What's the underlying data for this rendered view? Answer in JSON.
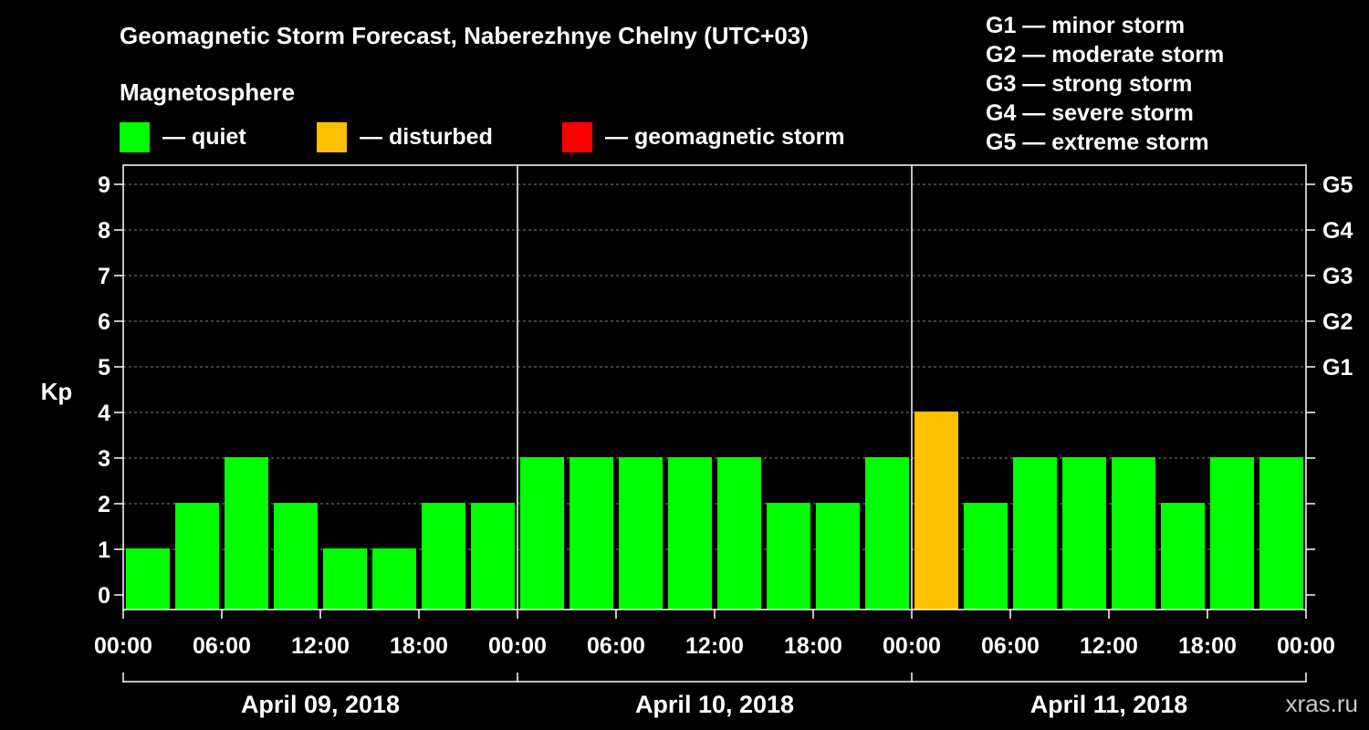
{
  "chart_data": {
    "type": "bar",
    "title": "Geomagnetic Storm Forecast, Naberezhnye Chelny (UTC+03)",
    "ylabel": "Kp",
    "ylim": [
      0,
      9
    ],
    "yticks": [
      "0",
      "1",
      "2",
      "3",
      "4",
      "5",
      "6",
      "7",
      "8",
      "9"
    ],
    "right_ticks": [
      {
        "kp": 5,
        "label": "G1"
      },
      {
        "kp": 6,
        "label": "G2"
      },
      {
        "kp": 7,
        "label": "G3"
      },
      {
        "kp": 8,
        "label": "G4"
      },
      {
        "kp": 9,
        "label": "G5"
      }
    ],
    "xtick_labels": [
      "00:00",
      "06:00",
      "12:00",
      "18:00",
      "00:00",
      "06:00",
      "12:00",
      "18:00",
      "00:00",
      "06:00",
      "12:00",
      "18:00",
      "00:00"
    ],
    "days": [
      "April 09, 2018",
      "April 10, 2018",
      "April 11, 2018"
    ],
    "grid": "dashed horizontal",
    "bar_colors": {
      "quiet": "#00ff00",
      "disturbed": "#ffc000",
      "storm": "#ff0000"
    },
    "values": [
      1,
      2,
      3,
      2,
      1,
      1,
      2,
      2,
      3,
      3,
      3,
      3,
      3,
      2,
      2,
      3,
      4,
      2,
      3,
      3,
      3,
      2,
      3,
      3
    ]
  },
  "legend": {
    "heading": "Magnetosphere",
    "items": [
      {
        "label": "— quiet",
        "color": "#00ff00"
      },
      {
        "label": "— disturbed",
        "color": "#ffc000"
      },
      {
        "label": "— geomagnetic storm",
        "color": "#ff0000"
      }
    ]
  },
  "g_legend": [
    "G1 — minor storm",
    "G2 — moderate storm",
    "G3 — strong storm",
    "G4 — severe storm",
    "G5 — extreme storm"
  ],
  "watermark": "xras.ru"
}
